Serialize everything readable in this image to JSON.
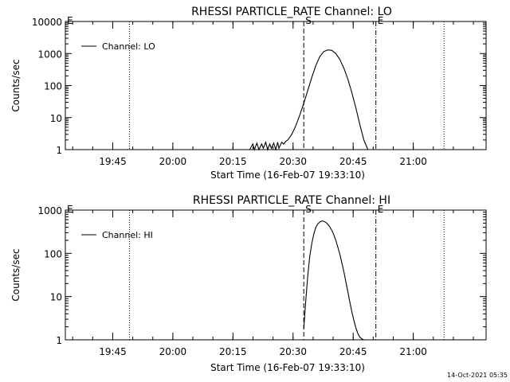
{
  "chart_data": [
    {
      "type": "line",
      "title": "RHESSI PARTICLE_RATE Channel: LO",
      "xlabel": "Start Time (16-Feb-07 19:33:10)",
      "ylabel": "Counts/sec",
      "x_unit": "minutes after 19:33:10",
      "xlim": [
        0,
        105
      ],
      "ylim": [
        1,
        10000
      ],
      "ylog": true,
      "yticks": [
        1,
        10,
        100,
        1000,
        10000
      ],
      "ytick_labels": [
        "1",
        "10",
        "100",
        "1000",
        "10000"
      ],
      "xticks": [
        11.83,
        26.83,
        41.83,
        56.83,
        71.83,
        86.83
      ],
      "xtick_labels": [
        "19:45",
        "20:00",
        "20:15",
        "20:30",
        "20:45",
        "21:00"
      ],
      "legend": {
        "entries": [
          "Channel: LO"
        ],
        "placement": "top-left"
      },
      "markers": [
        {
          "label": "E",
          "x": 0,
          "style": "dotted"
        },
        {
          "label": "",
          "x": 16.0,
          "style": "dotted"
        },
        {
          "label": "S",
          "x": 59.5,
          "style": "dashed"
        },
        {
          "label": "E",
          "x": 77.5,
          "style": "dashdot"
        },
        {
          "label": "",
          "x": 94.5,
          "style": "dotted"
        }
      ],
      "series": [
        {
          "name": "Channel: LO",
          "x": [
            46.0,
            46.8,
            47.2,
            47.8,
            48.3,
            49.0,
            49.4,
            50.0,
            50.5,
            51.0,
            51.4,
            52.0,
            52.5,
            53.0,
            53.3,
            54.0,
            54.5,
            55.0,
            55.5,
            56.5,
            57.5,
            58.5,
            59.5,
            60.5,
            61.5,
            62.5,
            63.5,
            64.5,
            65.5,
            66.5,
            67.5,
            68.5,
            69.5,
            70.5,
            71.5,
            72.5,
            73.5,
            74.5,
            75.5
          ],
          "values": [
            1,
            1.5,
            1,
            1.6,
            1,
            1.5,
            1.1,
            1.7,
            1,
            1.5,
            1.1,
            1.6,
            1,
            1.7,
            1.1,
            1.7,
            1.5,
            1.8,
            2.0,
            3.0,
            5.5,
            12,
            28,
            70,
            180,
            420,
            800,
            1150,
            1300,
            1250,
            1000,
            650,
            350,
            160,
            60,
            20,
            6,
            2,
            1
          ]
        }
      ]
    },
    {
      "type": "line",
      "title": "RHESSI PARTICLE_RATE Channel: HI",
      "xlabel": "Start Time (16-Feb-07 19:33:10)",
      "ylabel": "Counts/sec",
      "x_unit": "minutes after 19:33:10",
      "xlim": [
        0,
        105
      ],
      "ylim": [
        1,
        1000
      ],
      "ylog": true,
      "yticks": [
        1,
        10,
        100,
        1000
      ],
      "ytick_labels": [
        "1",
        "10",
        "100",
        "1000"
      ],
      "xticks": [
        11.83,
        26.83,
        41.83,
        56.83,
        71.83,
        86.83
      ],
      "xtick_labels": [
        "19:45",
        "20:00",
        "20:15",
        "20:30",
        "20:45",
        "21:00"
      ],
      "legend": {
        "entries": [
          "Channel: HI"
        ],
        "placement": "top-left"
      },
      "markers": [
        {
          "label": "E",
          "x": 0,
          "style": "dotted"
        },
        {
          "label": "",
          "x": 16.0,
          "style": "dotted"
        },
        {
          "label": "S",
          "x": 59.5,
          "style": "dashed"
        },
        {
          "label": "E",
          "x": 77.5,
          "style": "dashdot"
        },
        {
          "label": "",
          "x": 94.5,
          "style": "dotted"
        }
      ],
      "series": [
        {
          "name": "Channel: HI",
          "x": [
            59.5,
            60.0,
            60.5,
            61.0,
            61.5,
            62.0,
            62.5,
            63.0,
            63.5,
            64.0,
            64.5,
            65.0,
            65.5,
            66.0,
            66.5,
            67.0,
            67.5,
            68.0,
            68.5,
            69.0,
            69.5,
            70.0,
            70.5,
            71.0,
            71.5,
            72.0,
            72.5,
            73.0,
            73.5,
            74.0,
            74.5,
            75.0
          ],
          "values": [
            1.8,
            8,
            30,
            85,
            170,
            280,
            400,
            480,
            530,
            560,
            550,
            520,
            470,
            410,
            340,
            270,
            200,
            140,
            95,
            60,
            38,
            22,
            13,
            7.5,
            4.5,
            2.8,
            1.9,
            1.4,
            1.15,
            1.05,
            1.0,
            1.0
          ]
        }
      ]
    }
  ],
  "footer": {
    "timestamp": "14-Oct-2021 05:35"
  }
}
